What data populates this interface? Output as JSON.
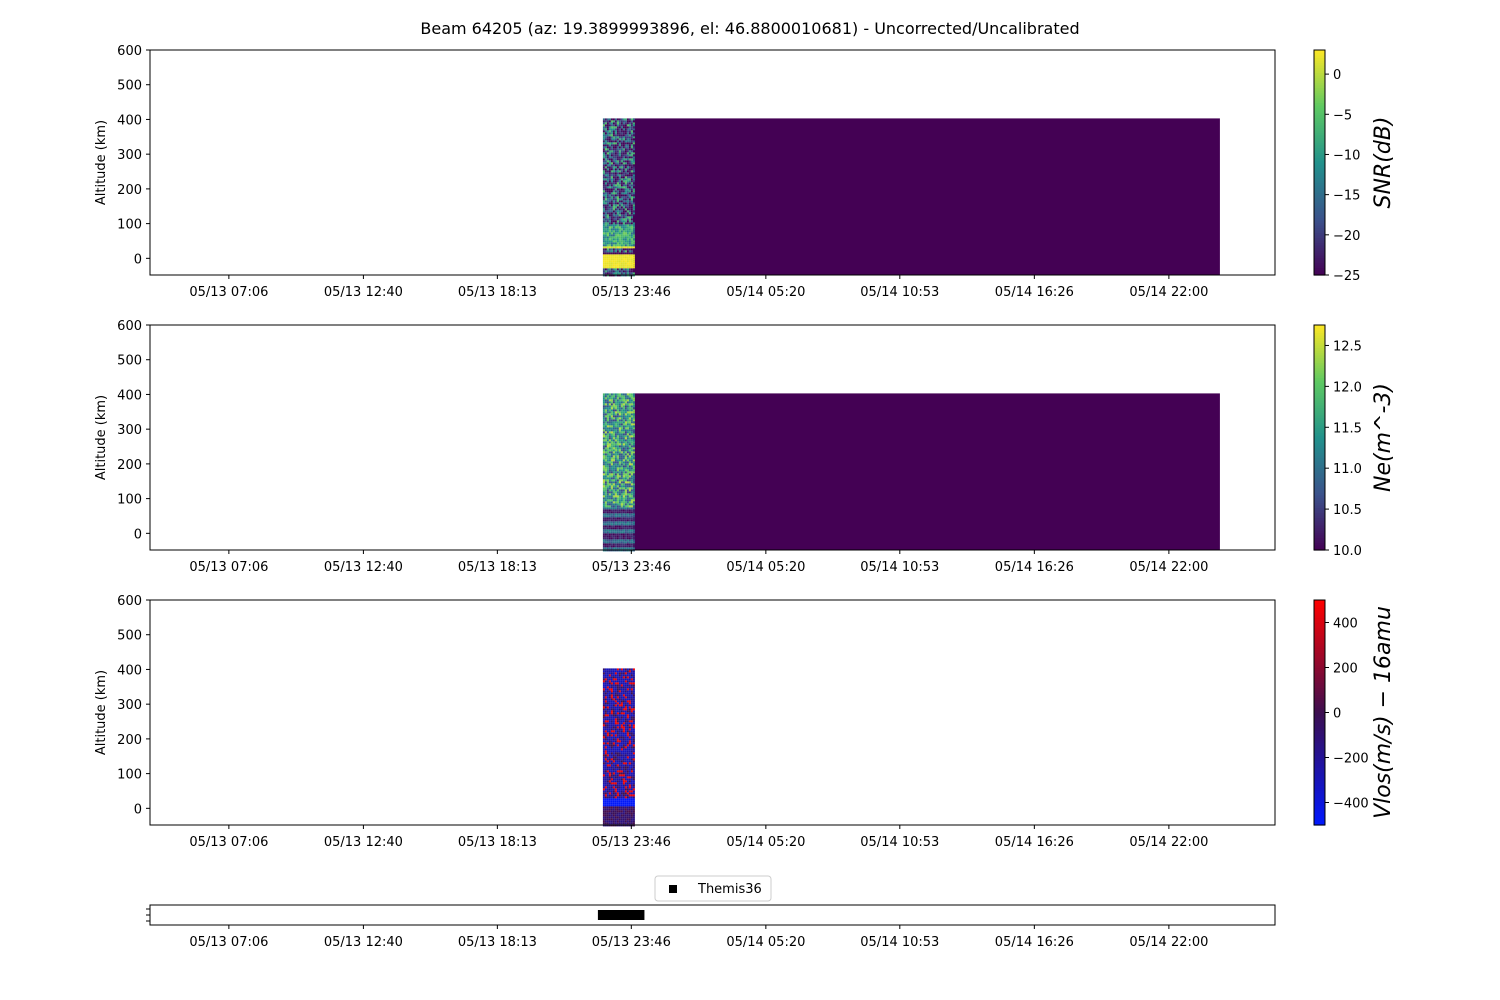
{
  "figure": {
    "title": "Beam 64205 (az: 19.3899993896, el: 46.8800010681) - Uncorrected/Uncalibrated"
  },
  "chart_data": [
    {
      "type": "heatmap",
      "name": "snr",
      "ylabel": "Altitude (km)",
      "ylim": [
        -48,
        600
      ],
      "yticks": [
        0,
        100,
        200,
        300,
        400,
        500,
        600
      ],
      "xticklabels": [
        "05/13 07:06",
        "05/13 12:40",
        "05/13 18:13",
        "05/13 23:46",
        "05/14 05:20",
        "05/14 10:53",
        "05/14 16:26",
        "05/14 22:00"
      ],
      "xlim": [
        0.16,
        2.1
      ],
      "xticks": [
        0.296,
        0.528,
        0.759,
        0.99,
        1.222,
        1.453,
        1.685,
        1.917
      ],
      "data_extent": {
        "x": [
          0.941,
          2.005
        ],
        "y": [
          -48,
          403
        ]
      },
      "colorbar": {
        "label": "SNR(dB)",
        "cmap": "viridis",
        "range": [
          -25,
          3
        ],
        "ticks": [
          -25,
          -20,
          -15,
          -10,
          -5,
          0
        ]
      }
    },
    {
      "type": "heatmap",
      "name": "ne",
      "ylabel": "Altitude (km)",
      "ylim": [
        -48,
        600
      ],
      "yticks": [
        0,
        100,
        200,
        300,
        400,
        500,
        600
      ],
      "xticklabels": [
        "05/13 07:06",
        "05/13 12:40",
        "05/13 18:13",
        "05/13 23:46",
        "05/14 05:20",
        "05/14 10:53",
        "05/14 16:26",
        "05/14 22:00"
      ],
      "xlim": [
        0.16,
        2.1
      ],
      "xticks": [
        0.296,
        0.528,
        0.759,
        0.99,
        1.222,
        1.453,
        1.685,
        1.917
      ],
      "data_extent": {
        "x": [
          0.941,
          2.005
        ],
        "y": [
          -48,
          403
        ]
      },
      "colorbar": {
        "label": "Ne(m^-3)",
        "cmap": "viridis",
        "range": [
          10.0,
          12.75
        ],
        "ticks": [
          10.0,
          10.5,
          11.0,
          11.5,
          12.0,
          12.5
        ]
      }
    },
    {
      "type": "heatmap",
      "name": "vlos",
      "ylabel": "Altitude (km)",
      "ylim": [
        -48,
        600
      ],
      "yticks": [
        0,
        100,
        200,
        300,
        400,
        500,
        600
      ],
      "xticklabels": [
        "05/13 07:06",
        "05/13 12:40",
        "05/13 18:13",
        "05/13 23:46",
        "05/14 05:20",
        "05/14 10:53",
        "05/14 16:26",
        "05/14 22:00"
      ],
      "xlim": [
        0.16,
        2.1
      ],
      "xticks": [
        0.296,
        0.528,
        0.759,
        0.99,
        1.222,
        1.453,
        1.685,
        1.917
      ],
      "data_extent": {
        "x": [
          0.941,
          0.993
        ],
        "y": [
          -48,
          403
        ]
      },
      "colorbar": {
        "label": "Vlos(m/s) − 16amu",
        "cmap": "bwr-dark",
        "range": [
          -500,
          500
        ],
        "ticks": [
          -400,
          -200,
          0,
          200,
          400
        ]
      }
    },
    {
      "type": "scatter",
      "name": "themis",
      "xticklabels": [
        "05/13 07:06",
        "05/13 12:40",
        "05/13 18:13",
        "05/13 23:46",
        "05/14 05:20",
        "05/14 10:53",
        "05/14 16:26",
        "05/14 22:00"
      ],
      "xlim": [
        0.16,
        2.1
      ],
      "xticks": [
        0.296,
        0.528,
        0.759,
        0.99,
        1.222,
        1.453,
        1.685,
        1.917
      ],
      "series": [
        {
          "name": "Themis36",
          "x": [
            0.941,
            0.948,
            0.955,
            0.962,
            0.969,
            0.976,
            0.983,
            0.99,
            0.997,
            1.004
          ],
          "y": [
            0,
            0,
            0,
            0,
            0,
            0,
            0,
            0,
            0,
            0
          ]
        }
      ],
      "legend": "top-center"
    }
  ]
}
